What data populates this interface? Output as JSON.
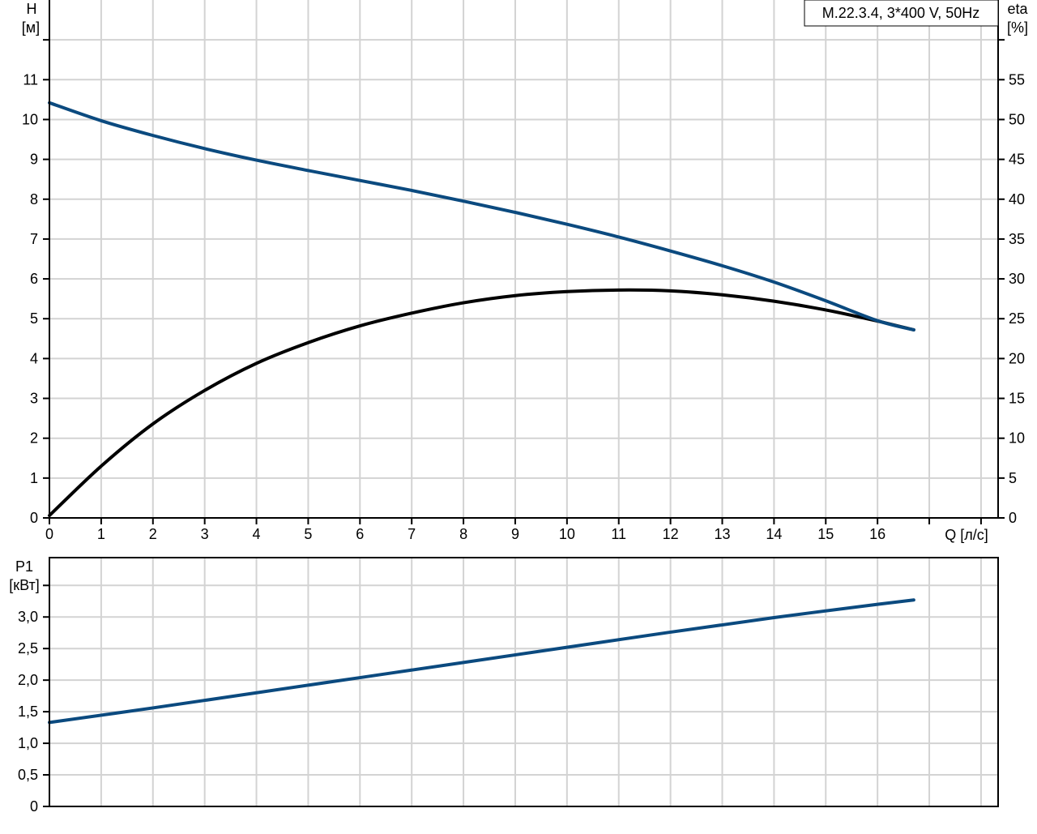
{
  "chart_data": [
    {
      "type": "line",
      "legend_box": "M.22.3.4, 3*400 V, 50Hz",
      "xlabel": "Q [л/с]",
      "ylabel": "H",
      "ylabel_unit": "[м]",
      "y2label": "eta",
      "y2label_unit": "[%]",
      "xlim": [
        0,
        18.33
      ],
      "ylim": [
        0,
        13
      ],
      "y2lim": [
        0,
        65
      ],
      "xticks": [
        "0",
        "1",
        "2",
        "3",
        "4",
        "5",
        "6",
        "7",
        "8",
        "9",
        "10",
        "11",
        "12",
        "13",
        "14",
        "15",
        "16"
      ],
      "yticks": [
        "0",
        "1",
        "2",
        "3",
        "4",
        "5",
        "6",
        "7",
        "8",
        "9",
        "10",
        "11"
      ],
      "y2ticks": [
        "0",
        "5",
        "10",
        "15",
        "20",
        "25",
        "30",
        "35",
        "40",
        "45",
        "50",
        "55"
      ],
      "grid": true,
      "series": [
        {
          "axis": "left",
          "color": "#0b4a7f",
          "x": [
            0,
            1,
            2,
            3,
            4,
            5,
            6,
            7,
            8,
            9,
            10,
            11,
            12,
            13,
            14,
            15,
            16,
            16.7
          ],
          "y": [
            10.42,
            9.97,
            9.6,
            9.27,
            8.98,
            8.72,
            8.47,
            8.22,
            7.95,
            7.67,
            7.37,
            7.05,
            6.7,
            6.33,
            5.92,
            5.45,
            4.95,
            4.72
          ]
        },
        {
          "axis": "right",
          "color": "#000000",
          "x": [
            0,
            1,
            2,
            3,
            4,
            5,
            6,
            7,
            8,
            9,
            10,
            11,
            12,
            13,
            14,
            15,
            16,
            16.7
          ],
          "y": [
            0.3,
            6.5,
            11.8,
            16,
            19.4,
            22,
            24.1,
            25.7,
            27,
            27.9,
            28.4,
            28.6,
            28.5,
            28,
            27.2,
            26.1,
            24.7,
            23.6
          ]
        }
      ]
    },
    {
      "type": "line",
      "ylabel": "P1",
      "ylabel_unit": "[кВт]",
      "xlim": [
        0,
        18.33
      ],
      "ylim": [
        0,
        3.94
      ],
      "yticks": [
        "0",
        "0,5",
        "1,0",
        "1,5",
        "2,0",
        "2,5",
        "3,0"
      ],
      "grid": true,
      "series": [
        {
          "color": "#0b4a7f",
          "x": [
            0,
            2,
            4,
            6,
            8,
            10,
            12,
            14,
            16,
            16.7
          ],
          "y": [
            1.33,
            1.56,
            1.8,
            2.04,
            2.28,
            2.52,
            2.76,
            2.99,
            3.2,
            3.27
          ]
        }
      ]
    }
  ]
}
